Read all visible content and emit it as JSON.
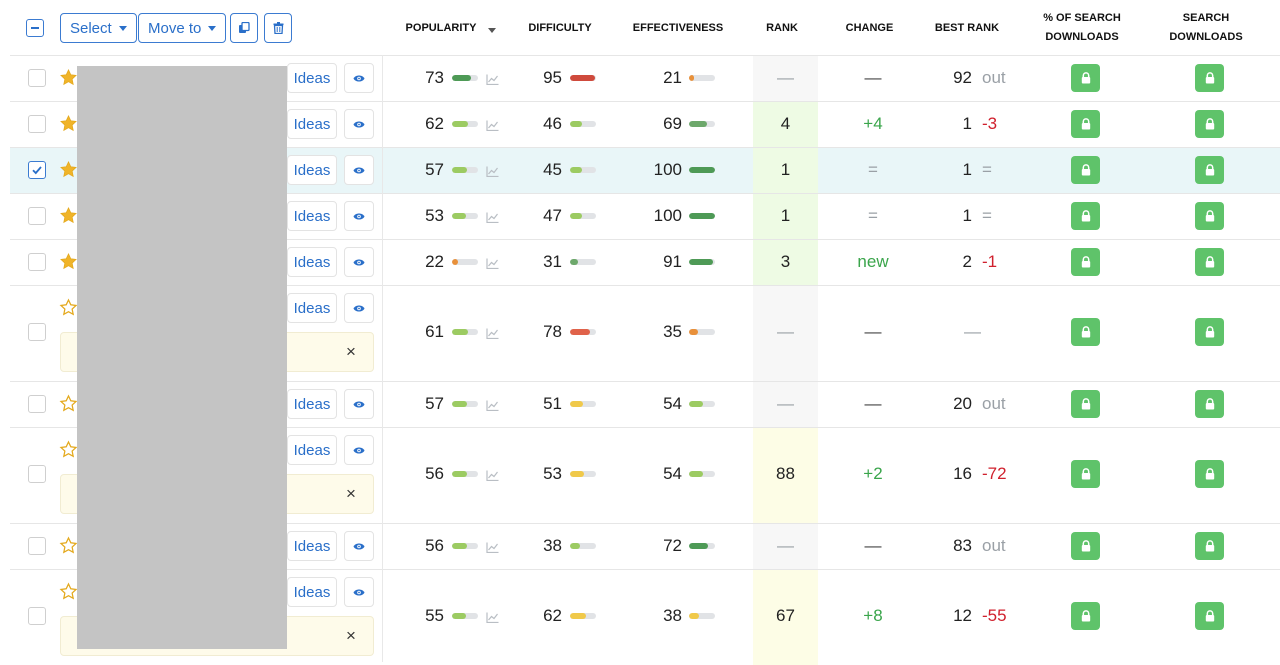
{
  "toolbar": {
    "select_label": "Select",
    "move_to_label": "Move to"
  },
  "columns": {
    "popularity": "POPULARITY",
    "difficulty": "DIFFICULTY",
    "effectiveness": "EFFECTIVENESS",
    "rank": "RANK",
    "change": "CHANGE",
    "best_rank": "BEST RANK",
    "pct_search_downloads": [
      "% OF SEARCH",
      "DOWNLOADS"
    ],
    "search_downloads": [
      "SEARCH",
      "DOWNLOADS"
    ]
  },
  "ideas_label": "Ideas",
  "colors": {
    "accent": "#2a6fc9",
    "lock_green": "#5fc36a",
    "positive": "#3aa54b",
    "negative": "#d0202d",
    "muted": "#9aa0a6",
    "rank_green_bg": "#eefbe4",
    "rank_yellow_bg": "#fdfde6",
    "rank_gray_bg": "#f7f7f7"
  },
  "rows": [
    {
      "checked": false,
      "starred": true,
      "note": false,
      "popularity": "73",
      "pop_pct": 0.73,
      "pop_color": "#4e9a56",
      "difficulty": "95",
      "diff_pct": 0.95,
      "diff_color": "#cf4a3c",
      "effectiveness": "21",
      "eff_pct": 0.21,
      "eff_color": "#e8903a",
      "rank": "—",
      "rank_bg": "gray",
      "change": "—",
      "change_type": "neutral",
      "best_rank": "92",
      "best_change": "out",
      "best_type": "muted"
    },
    {
      "checked": false,
      "starred": true,
      "note": false,
      "popularity": "62",
      "pop_pct": 0.62,
      "pop_color": "#9ccb62",
      "difficulty": "46",
      "diff_pct": 0.46,
      "diff_color": "#9ccb62",
      "effectiveness": "69",
      "eff_pct": 0.69,
      "eff_color": "#6da86b",
      "rank": "4",
      "rank_bg": "green",
      "change": "+4",
      "change_type": "positive",
      "best_rank": "1",
      "best_change": "-3",
      "best_type": "negative"
    },
    {
      "checked": true,
      "starred": true,
      "note": false,
      "popularity": "57",
      "pop_pct": 0.57,
      "pop_color": "#9ccb62",
      "difficulty": "45",
      "diff_pct": 0.45,
      "diff_color": "#9ccb62",
      "effectiveness": "100",
      "eff_pct": 1.0,
      "eff_color": "#4e9a56",
      "rank": "1",
      "rank_bg": "green",
      "change": "=",
      "change_type": "muted",
      "best_rank": "1",
      "best_change": "=",
      "best_type": "muted"
    },
    {
      "checked": false,
      "starred": true,
      "note": false,
      "popularity": "53",
      "pop_pct": 0.53,
      "pop_color": "#9ccb62",
      "difficulty": "47",
      "diff_pct": 0.47,
      "diff_color": "#9ccb62",
      "effectiveness": "100",
      "eff_pct": 1.0,
      "eff_color": "#4e9a56",
      "rank": "1",
      "rank_bg": "green",
      "change": "=",
      "change_type": "muted",
      "best_rank": "1",
      "best_change": "=",
      "best_type": "muted"
    },
    {
      "checked": false,
      "starred": true,
      "note": false,
      "popularity": "22",
      "pop_pct": 0.22,
      "pop_color": "#e8903a",
      "difficulty": "31",
      "diff_pct": 0.31,
      "diff_color": "#6da86b",
      "effectiveness": "91",
      "eff_pct": 0.91,
      "eff_color": "#4e9a56",
      "rank": "3",
      "rank_bg": "green",
      "change": "new",
      "change_type": "positive",
      "best_rank": "2",
      "best_change": "-1",
      "best_type": "negative"
    },
    {
      "checked": false,
      "starred": false,
      "note": true,
      "popularity": "61",
      "pop_pct": 0.61,
      "pop_color": "#9ccb62",
      "difficulty": "78",
      "diff_pct": 0.78,
      "diff_color": "#e0624a",
      "effectiveness": "35",
      "eff_pct": 0.35,
      "eff_color": "#e8903a",
      "rank": "—",
      "rank_bg": "gray",
      "change": "—",
      "change_type": "neutral",
      "best_rank": "",
      "best_change": "—",
      "best_type": "muted"
    },
    {
      "checked": false,
      "starred": false,
      "note": false,
      "popularity": "57",
      "pop_pct": 0.57,
      "pop_color": "#9ccb62",
      "difficulty": "51",
      "diff_pct": 0.51,
      "diff_color": "#f0c94a",
      "effectiveness": "54",
      "eff_pct": 0.54,
      "eff_color": "#9ccb62",
      "rank": "—",
      "rank_bg": "gray",
      "change": "—",
      "change_type": "neutral",
      "best_rank": "20",
      "best_change": "out",
      "best_type": "muted"
    },
    {
      "checked": false,
      "starred": false,
      "note": true,
      "popularity": "56",
      "pop_pct": 0.56,
      "pop_color": "#9ccb62",
      "difficulty": "53",
      "diff_pct": 0.53,
      "diff_color": "#f0c94a",
      "effectiveness": "54",
      "eff_pct": 0.54,
      "eff_color": "#9ccb62",
      "rank": "88",
      "rank_bg": "yellow",
      "change": "+2",
      "change_type": "positive",
      "best_rank": "16",
      "best_change": "-72",
      "best_type": "negative"
    },
    {
      "checked": false,
      "starred": false,
      "note": false,
      "popularity": "56",
      "pop_pct": 0.56,
      "pop_color": "#9ccb62",
      "difficulty": "38",
      "diff_pct": 0.38,
      "diff_color": "#9ccb62",
      "effectiveness": "72",
      "eff_pct": 0.72,
      "eff_color": "#4e9a56",
      "rank": "—",
      "rank_bg": "gray",
      "change": "—",
      "change_type": "neutral",
      "best_rank": "83",
      "best_change": "out",
      "best_type": "muted"
    },
    {
      "checked": false,
      "starred": false,
      "note": true,
      "popularity": "55",
      "pop_pct": 0.55,
      "pop_color": "#9ccb62",
      "difficulty": "62",
      "diff_pct": 0.62,
      "diff_color": "#f0c94a",
      "effectiveness": "38",
      "eff_pct": 0.38,
      "eff_color": "#f0c94a",
      "rank": "67",
      "rank_bg": "yellow",
      "change": "+8",
      "change_type": "positive",
      "best_rank": "12",
      "best_change": "-55",
      "best_type": "negative"
    }
  ]
}
